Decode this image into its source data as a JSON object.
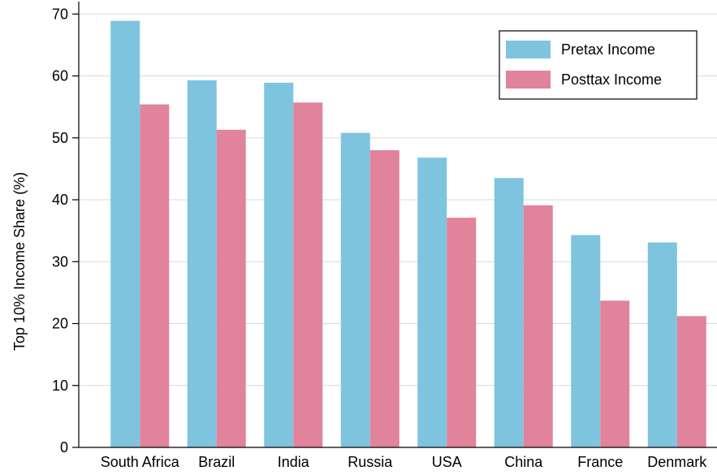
{
  "chart_data": {
    "type": "bar",
    "title": "",
    "xlabel": "",
    "ylabel": "Top 10% Income Share (%)",
    "ylim": [
      0,
      72
    ],
    "yticks": [
      0,
      10,
      20,
      30,
      40,
      50,
      60,
      70
    ],
    "grid": "horizontal",
    "legend_position": "top-right",
    "categories": [
      "South Africa",
      "Brazil",
      "India",
      "Russia",
      "USA",
      "China",
      "France",
      "Denmark"
    ],
    "series": [
      {
        "name": "Pretax Income",
        "color": "#7ec4de",
        "values": [
          68.9,
          59.3,
          58.9,
          50.8,
          46.8,
          43.5,
          34.3,
          33.1
        ]
      },
      {
        "name": "Posttax Income",
        "color": "#e0839b",
        "values": [
          55.4,
          51.3,
          55.7,
          48.0,
          37.1,
          39.1,
          23.7,
          21.2
        ]
      }
    ]
  }
}
